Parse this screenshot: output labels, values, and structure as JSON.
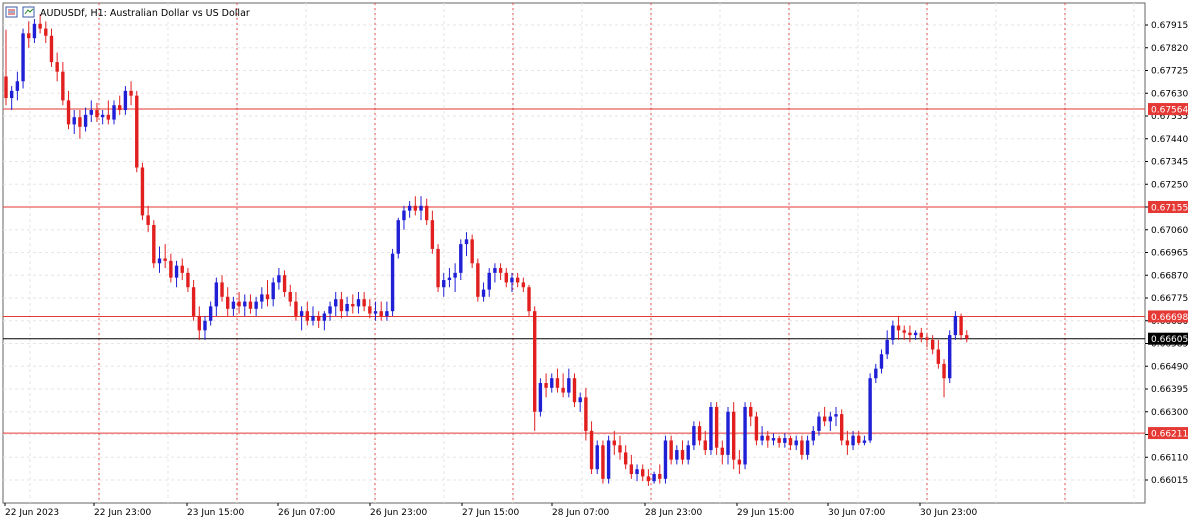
{
  "header": {
    "symbol_info": "AUDUSDf, H1:  Australian Dollar vs US Dollar"
  },
  "colors": {
    "bull": "#1f1fd6",
    "bear": "#e21f1f",
    "level_line": "#e53935",
    "current_line": "#000000",
    "grid": "#e6e6e6",
    "session_sep": "#e05050",
    "frame": "#666666"
  },
  "chart_data": {
    "type": "candlestick",
    "timeframe": "H1",
    "x_ticks": [
      "22 Jun 2023",
      "22 Jun 23:00",
      "23 Jun 15:00",
      "26 Jun 07:00",
      "26 Jun 23:00",
      "27 Jun 15:00",
      "28 Jun 07:00",
      "28 Jun 23:00",
      "29 Jun 15:00",
      "30 Jun 07:00",
      "30 Jun 23:00"
    ],
    "y_ticks": [
      "0.67915",
      "0.67820",
      "0.67725",
      "0.67630",
      "0.67535",
      "0.67440",
      "0.67345",
      "0.67250",
      "0.67155",
      "0.67060",
      "0.66965",
      "0.66870",
      "0.66775",
      "0.66680",
      "0.66585",
      "0.66490",
      "0.66395",
      "0.66300",
      "0.66205",
      "0.66110",
      "0.66015"
    ],
    "ylim": [
      0.6596,
      0.68
    ],
    "horizontal_levels": [
      "0.67564",
      "0.67155",
      "0.66698",
      "0.66211"
    ],
    "current_price": "0.66605",
    "candles": [
      {
        "o": 0.677,
        "h": 0.67895,
        "l": 0.6758,
        "c": 0.6761
      },
      {
        "o": 0.6761,
        "h": 0.6766,
        "l": 0.6756,
        "c": 0.6764
      },
      {
        "o": 0.6764,
        "h": 0.6772,
        "l": 0.676,
        "c": 0.6768
      },
      {
        "o": 0.6768,
        "h": 0.679,
        "l": 0.6765,
        "c": 0.6788
      },
      {
        "o": 0.6788,
        "h": 0.6793,
        "l": 0.6782,
        "c": 0.6786
      },
      {
        "o": 0.6786,
        "h": 0.6794,
        "l": 0.6784,
        "c": 0.6792
      },
      {
        "o": 0.6792,
        "h": 0.6796,
        "l": 0.6788,
        "c": 0.679
      },
      {
        "o": 0.679,
        "h": 0.6793,
        "l": 0.6784,
        "c": 0.6787
      },
      {
        "o": 0.6787,
        "h": 0.679,
        "l": 0.6774,
        "c": 0.6776
      },
      {
        "o": 0.6776,
        "h": 0.678,
        "l": 0.6768,
        "c": 0.6772
      },
      {
        "o": 0.6772,
        "h": 0.6776,
        "l": 0.6758,
        "c": 0.676
      },
      {
        "o": 0.676,
        "h": 0.6764,
        "l": 0.6748,
        "c": 0.675
      },
      {
        "o": 0.675,
        "h": 0.6756,
        "l": 0.6746,
        "c": 0.6753
      },
      {
        "o": 0.6753,
        "h": 0.6756,
        "l": 0.6744,
        "c": 0.6749
      },
      {
        "o": 0.6749,
        "h": 0.6757,
        "l": 0.6747,
        "c": 0.6754
      },
      {
        "o": 0.6754,
        "h": 0.676,
        "l": 0.6751,
        "c": 0.6756
      },
      {
        "o": 0.6756,
        "h": 0.6759,
        "l": 0.6751,
        "c": 0.6753
      },
      {
        "o": 0.6753,
        "h": 0.6756,
        "l": 0.675,
        "c": 0.6754
      },
      {
        "o": 0.6754,
        "h": 0.676,
        "l": 0.675,
        "c": 0.6752
      },
      {
        "o": 0.6752,
        "h": 0.676,
        "l": 0.675,
        "c": 0.6758
      },
      {
        "o": 0.6758,
        "h": 0.6762,
        "l": 0.6754,
        "c": 0.6756
      },
      {
        "o": 0.6756,
        "h": 0.6766,
        "l": 0.6754,
        "c": 0.6764
      },
      {
        "o": 0.6764,
        "h": 0.6768,
        "l": 0.6758,
        "c": 0.6762
      },
      {
        "o": 0.6762,
        "h": 0.6764,
        "l": 0.673,
        "c": 0.6732
      },
      {
        "o": 0.6732,
        "h": 0.6734,
        "l": 0.671,
        "c": 0.6712
      },
      {
        "o": 0.6712,
        "h": 0.6716,
        "l": 0.6705,
        "c": 0.6708
      },
      {
        "o": 0.6708,
        "h": 0.671,
        "l": 0.669,
        "c": 0.6692
      },
      {
        "o": 0.6692,
        "h": 0.6699,
        "l": 0.6688,
        "c": 0.6694
      },
      {
        "o": 0.6694,
        "h": 0.67,
        "l": 0.669,
        "c": 0.6693
      },
      {
        "o": 0.6693,
        "h": 0.6696,
        "l": 0.6684,
        "c": 0.6686
      },
      {
        "o": 0.6686,
        "h": 0.6693,
        "l": 0.6682,
        "c": 0.6691
      },
      {
        "o": 0.6691,
        "h": 0.6694,
        "l": 0.6685,
        "c": 0.6688
      },
      {
        "o": 0.6688,
        "h": 0.669,
        "l": 0.668,
        "c": 0.6682
      },
      {
        "o": 0.6682,
        "h": 0.6685,
        "l": 0.6668,
        "c": 0.667
      },
      {
        "o": 0.667,
        "h": 0.6674,
        "l": 0.666,
        "c": 0.6664
      },
      {
        "o": 0.6664,
        "h": 0.667,
        "l": 0.666,
        "c": 0.6668
      },
      {
        "o": 0.6668,
        "h": 0.6676,
        "l": 0.6666,
        "c": 0.6674
      },
      {
        "o": 0.6674,
        "h": 0.6686,
        "l": 0.667,
        "c": 0.6684
      },
      {
        "o": 0.6684,
        "h": 0.6687,
        "l": 0.6676,
        "c": 0.6678
      },
      {
        "o": 0.6678,
        "h": 0.6682,
        "l": 0.667,
        "c": 0.6673
      },
      {
        "o": 0.6673,
        "h": 0.6678,
        "l": 0.667,
        "c": 0.6676
      },
      {
        "o": 0.6676,
        "h": 0.668,
        "l": 0.6671,
        "c": 0.6674
      },
      {
        "o": 0.6674,
        "h": 0.6679,
        "l": 0.667,
        "c": 0.6676
      },
      {
        "o": 0.6676,
        "h": 0.6679,
        "l": 0.6671,
        "c": 0.6673
      },
      {
        "o": 0.6673,
        "h": 0.6678,
        "l": 0.667,
        "c": 0.6676
      },
      {
        "o": 0.6676,
        "h": 0.6682,
        "l": 0.6673,
        "c": 0.6679
      },
      {
        "o": 0.6679,
        "h": 0.6685,
        "l": 0.6674,
        "c": 0.6677
      },
      {
        "o": 0.6677,
        "h": 0.6686,
        "l": 0.6674,
        "c": 0.6684
      },
      {
        "o": 0.6684,
        "h": 0.669,
        "l": 0.6681,
        "c": 0.6687
      },
      {
        "o": 0.6687,
        "h": 0.6689,
        "l": 0.6678,
        "c": 0.668
      },
      {
        "o": 0.668,
        "h": 0.6683,
        "l": 0.6674,
        "c": 0.6676
      },
      {
        "o": 0.6676,
        "h": 0.668,
        "l": 0.6668,
        "c": 0.667
      },
      {
        "o": 0.667,
        "h": 0.6674,
        "l": 0.6664,
        "c": 0.6672
      },
      {
        "o": 0.6672,
        "h": 0.6676,
        "l": 0.6666,
        "c": 0.6668
      },
      {
        "o": 0.6668,
        "h": 0.6674,
        "l": 0.6666,
        "c": 0.667
      },
      {
        "o": 0.667,
        "h": 0.6672,
        "l": 0.6665,
        "c": 0.6668
      },
      {
        "o": 0.6668,
        "h": 0.6672,
        "l": 0.6664,
        "c": 0.6671
      },
      {
        "o": 0.6671,
        "h": 0.6676,
        "l": 0.6668,
        "c": 0.6674
      },
      {
        "o": 0.6674,
        "h": 0.668,
        "l": 0.667,
        "c": 0.6677
      },
      {
        "o": 0.6677,
        "h": 0.668,
        "l": 0.6669,
        "c": 0.6672
      },
      {
        "o": 0.6672,
        "h": 0.6678,
        "l": 0.667,
        "c": 0.6675
      },
      {
        "o": 0.6675,
        "h": 0.6679,
        "l": 0.6671,
        "c": 0.6674
      },
      {
        "o": 0.6674,
        "h": 0.668,
        "l": 0.6671,
        "c": 0.6677
      },
      {
        "o": 0.6677,
        "h": 0.668,
        "l": 0.6672,
        "c": 0.6674
      },
      {
        "o": 0.6674,
        "h": 0.6677,
        "l": 0.6669,
        "c": 0.6671
      },
      {
        "o": 0.6671,
        "h": 0.6676,
        "l": 0.6668,
        "c": 0.6672
      },
      {
        "o": 0.6672,
        "h": 0.6676,
        "l": 0.6668,
        "c": 0.667
      },
      {
        "o": 0.667,
        "h": 0.6676,
        "l": 0.6668,
        "c": 0.6672
      },
      {
        "o": 0.6672,
        "h": 0.6698,
        "l": 0.667,
        "c": 0.6696
      },
      {
        "o": 0.6696,
        "h": 0.6711,
        "l": 0.6694,
        "c": 0.671
      },
      {
        "o": 0.671,
        "h": 0.6716,
        "l": 0.6706,
        "c": 0.6714
      },
      {
        "o": 0.6714,
        "h": 0.6718,
        "l": 0.6711,
        "c": 0.6716
      },
      {
        "o": 0.6716,
        "h": 0.672,
        "l": 0.6712,
        "c": 0.6714
      },
      {
        "o": 0.6714,
        "h": 0.672,
        "l": 0.671,
        "c": 0.6716
      },
      {
        "o": 0.6716,
        "h": 0.6719,
        "l": 0.6708,
        "c": 0.671
      },
      {
        "o": 0.671,
        "h": 0.6714,
        "l": 0.6696,
        "c": 0.6698
      },
      {
        "o": 0.6698,
        "h": 0.67,
        "l": 0.668,
        "c": 0.6682
      },
      {
        "o": 0.6682,
        "h": 0.6688,
        "l": 0.6678,
        "c": 0.6685
      },
      {
        "o": 0.6685,
        "h": 0.669,
        "l": 0.6682,
        "c": 0.6686
      },
      {
        "o": 0.6686,
        "h": 0.6692,
        "l": 0.668,
        "c": 0.6688
      },
      {
        "o": 0.6688,
        "h": 0.6702,
        "l": 0.6685,
        "c": 0.67
      },
      {
        "o": 0.67,
        "h": 0.6705,
        "l": 0.6695,
        "c": 0.6702
      },
      {
        "o": 0.6702,
        "h": 0.6704,
        "l": 0.669,
        "c": 0.6692
      },
      {
        "o": 0.6692,
        "h": 0.6694,
        "l": 0.6676,
        "c": 0.6678
      },
      {
        "o": 0.6678,
        "h": 0.6684,
        "l": 0.6676,
        "c": 0.6681
      },
      {
        "o": 0.6681,
        "h": 0.669,
        "l": 0.6678,
        "c": 0.6688
      },
      {
        "o": 0.6688,
        "h": 0.6692,
        "l": 0.6684,
        "c": 0.669
      },
      {
        "o": 0.669,
        "h": 0.6692,
        "l": 0.6685,
        "c": 0.6688
      },
      {
        "o": 0.6688,
        "h": 0.669,
        "l": 0.6682,
        "c": 0.6684
      },
      {
        "o": 0.6684,
        "h": 0.6688,
        "l": 0.668,
        "c": 0.6686
      },
      {
        "o": 0.6686,
        "h": 0.6688,
        "l": 0.6682,
        "c": 0.6684
      },
      {
        "o": 0.6684,
        "h": 0.6686,
        "l": 0.668,
        "c": 0.6682
      },
      {
        "o": 0.6682,
        "h": 0.6683,
        "l": 0.667,
        "c": 0.6672
      },
      {
        "o": 0.6672,
        "h": 0.6674,
        "l": 0.6622,
        "c": 0.663
      },
      {
        "o": 0.663,
        "h": 0.6644,
        "l": 0.6628,
        "c": 0.6642
      },
      {
        "o": 0.6642,
        "h": 0.6646,
        "l": 0.6636,
        "c": 0.664
      },
      {
        "o": 0.664,
        "h": 0.6646,
        "l": 0.6638,
        "c": 0.6644
      },
      {
        "o": 0.6644,
        "h": 0.6648,
        "l": 0.6638,
        "c": 0.664
      },
      {
        "o": 0.664,
        "h": 0.6646,
        "l": 0.6636,
        "c": 0.6638
      },
      {
        "o": 0.6638,
        "h": 0.6648,
        "l": 0.6636,
        "c": 0.6644
      },
      {
        "o": 0.6644,
        "h": 0.6646,
        "l": 0.6632,
        "c": 0.6634
      },
      {
        "o": 0.6634,
        "h": 0.6638,
        "l": 0.663,
        "c": 0.6636
      },
      {
        "o": 0.6636,
        "h": 0.664,
        "l": 0.6618,
        "c": 0.6622
      },
      {
        "o": 0.6622,
        "h": 0.6626,
        "l": 0.6604,
        "c": 0.6606
      },
      {
        "o": 0.6606,
        "h": 0.6618,
        "l": 0.6604,
        "c": 0.6616
      },
      {
        "o": 0.6616,
        "h": 0.6618,
        "l": 0.66,
        "c": 0.6602
      },
      {
        "o": 0.6602,
        "h": 0.662,
        "l": 0.66,
        "c": 0.6618
      },
      {
        "o": 0.6618,
        "h": 0.6622,
        "l": 0.6612,
        "c": 0.6616
      },
      {
        "o": 0.6616,
        "h": 0.662,
        "l": 0.661,
        "c": 0.6613
      },
      {
        "o": 0.6613,
        "h": 0.6616,
        "l": 0.6606,
        "c": 0.6608
      },
      {
        "o": 0.6608,
        "h": 0.6612,
        "l": 0.6602,
        "c": 0.6604
      },
      {
        "o": 0.6604,
        "h": 0.6608,
        "l": 0.6601,
        "c": 0.6606
      },
      {
        "o": 0.6606,
        "h": 0.6608,
        "l": 0.6601,
        "c": 0.6603
      },
      {
        "o": 0.6603,
        "h": 0.6606,
        "l": 0.6599,
        "c": 0.6601
      },
      {
        "o": 0.6601,
        "h": 0.6605,
        "l": 0.66,
        "c": 0.6604
      },
      {
        "o": 0.6604,
        "h": 0.6608,
        "l": 0.66,
        "c": 0.6602
      },
      {
        "o": 0.6602,
        "h": 0.662,
        "l": 0.66,
        "c": 0.6618
      },
      {
        "o": 0.6618,
        "h": 0.662,
        "l": 0.6608,
        "c": 0.661
      },
      {
        "o": 0.661,
        "h": 0.6616,
        "l": 0.6608,
        "c": 0.6614
      },
      {
        "o": 0.6614,
        "h": 0.6618,
        "l": 0.6608,
        "c": 0.661
      },
      {
        "o": 0.661,
        "h": 0.6618,
        "l": 0.6608,
        "c": 0.6616
      },
      {
        "o": 0.6616,
        "h": 0.6626,
        "l": 0.6614,
        "c": 0.6624
      },
      {
        "o": 0.6624,
        "h": 0.6626,
        "l": 0.6616,
        "c": 0.6618
      },
      {
        "o": 0.6618,
        "h": 0.6622,
        "l": 0.6612,
        "c": 0.6614
      },
      {
        "o": 0.6614,
        "h": 0.6634,
        "l": 0.6612,
        "c": 0.6632
      },
      {
        "o": 0.6632,
        "h": 0.6634,
        "l": 0.6612,
        "c": 0.6615
      },
      {
        "o": 0.6615,
        "h": 0.6618,
        "l": 0.6608,
        "c": 0.6612
      },
      {
        "o": 0.6612,
        "h": 0.6632,
        "l": 0.6608,
        "c": 0.663
      },
      {
        "o": 0.663,
        "h": 0.6634,
        "l": 0.6606,
        "c": 0.661
      },
      {
        "o": 0.661,
        "h": 0.6614,
        "l": 0.6604,
        "c": 0.6608
      },
      {
        "o": 0.6608,
        "h": 0.6634,
        "l": 0.6606,
        "c": 0.6632
      },
      {
        "o": 0.6632,
        "h": 0.6634,
        "l": 0.6624,
        "c": 0.6628
      },
      {
        "o": 0.6628,
        "h": 0.663,
        "l": 0.6616,
        "c": 0.6618
      },
      {
        "o": 0.6618,
        "h": 0.6624,
        "l": 0.6616,
        "c": 0.662
      },
      {
        "o": 0.662,
        "h": 0.6622,
        "l": 0.6615,
        "c": 0.6618
      },
      {
        "o": 0.6618,
        "h": 0.6621,
        "l": 0.6616,
        "c": 0.6619
      },
      {
        "o": 0.6619,
        "h": 0.662,
        "l": 0.6615,
        "c": 0.6617
      },
      {
        "o": 0.6617,
        "h": 0.6621,
        "l": 0.6615,
        "c": 0.6619
      },
      {
        "o": 0.6619,
        "h": 0.662,
        "l": 0.6614,
        "c": 0.6616
      },
      {
        "o": 0.6616,
        "h": 0.662,
        "l": 0.6614,
        "c": 0.6618
      },
      {
        "o": 0.6618,
        "h": 0.662,
        "l": 0.661,
        "c": 0.6612
      },
      {
        "o": 0.6612,
        "h": 0.662,
        "l": 0.661,
        "c": 0.6618
      },
      {
        "o": 0.6618,
        "h": 0.6624,
        "l": 0.6616,
        "c": 0.6622
      },
      {
        "o": 0.6622,
        "h": 0.663,
        "l": 0.662,
        "c": 0.6628
      },
      {
        "o": 0.6628,
        "h": 0.6632,
        "l": 0.6624,
        "c": 0.6626
      },
      {
        "o": 0.6626,
        "h": 0.663,
        "l": 0.6622,
        "c": 0.6628
      },
      {
        "o": 0.6628,
        "h": 0.6632,
        "l": 0.6624,
        "c": 0.6629
      },
      {
        "o": 0.6629,
        "h": 0.6631,
        "l": 0.6616,
        "c": 0.6618
      },
      {
        "o": 0.6618,
        "h": 0.6622,
        "l": 0.6612,
        "c": 0.6616
      },
      {
        "o": 0.6616,
        "h": 0.6622,
        "l": 0.6614,
        "c": 0.662
      },
      {
        "o": 0.662,
        "h": 0.6622,
        "l": 0.6616,
        "c": 0.6617
      },
      {
        "o": 0.6617,
        "h": 0.662,
        "l": 0.6616,
        "c": 0.6618
      },
      {
        "o": 0.6618,
        "h": 0.6646,
        "l": 0.6617,
        "c": 0.6644
      },
      {
        "o": 0.6644,
        "h": 0.665,
        "l": 0.6642,
        "c": 0.6648
      },
      {
        "o": 0.6648,
        "h": 0.6656,
        "l": 0.6646,
        "c": 0.6654
      },
      {
        "o": 0.6654,
        "h": 0.6664,
        "l": 0.6652,
        "c": 0.666
      },
      {
        "o": 0.666,
        "h": 0.6668,
        "l": 0.6658,
        "c": 0.6666
      },
      {
        "o": 0.6666,
        "h": 0.667,
        "l": 0.666,
        "c": 0.6664
      },
      {
        "o": 0.6664,
        "h": 0.6666,
        "l": 0.666,
        "c": 0.6663
      },
      {
        "o": 0.6663,
        "h": 0.6666,
        "l": 0.6659,
        "c": 0.6662
      },
      {
        "o": 0.6662,
        "h": 0.6664,
        "l": 0.666,
        "c": 0.6663
      },
      {
        "o": 0.6663,
        "h": 0.6665,
        "l": 0.6659,
        "c": 0.6661
      },
      {
        "o": 0.6661,
        "h": 0.6663,
        "l": 0.6657,
        "c": 0.666
      },
      {
        "o": 0.666,
        "h": 0.6662,
        "l": 0.6654,
        "c": 0.6656
      },
      {
        "o": 0.6656,
        "h": 0.666,
        "l": 0.6648,
        "c": 0.665
      },
      {
        "o": 0.665,
        "h": 0.6652,
        "l": 0.6636,
        "c": 0.6644
      },
      {
        "o": 0.6644,
        "h": 0.6664,
        "l": 0.6642,
        "c": 0.6662
      },
      {
        "o": 0.6662,
        "h": 0.6672,
        "l": 0.666,
        "c": 0.667
      },
      {
        "o": 0.667,
        "h": 0.6671,
        "l": 0.666,
        "c": 0.6662
      },
      {
        "o": 0.6662,
        "h": 0.6664,
        "l": 0.6659,
        "c": 0.66605
      }
    ]
  }
}
